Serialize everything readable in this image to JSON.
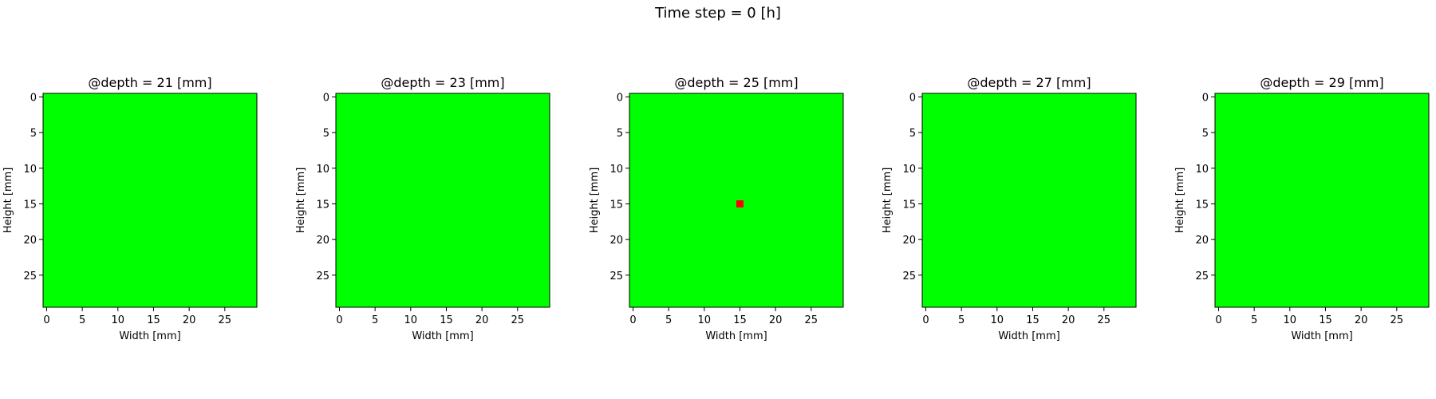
{
  "figure": {
    "suptitle": "Time step = 0 [h]"
  },
  "colors": {
    "background_cell": "#00ff00",
    "highlight_cell": "#ff0000",
    "axis": "#000000"
  },
  "chart_data": [
    {
      "type": "heatmap",
      "title": "@depth = 21 [mm]",
      "xlabel": "Width [mm]",
      "ylabel": "Height [mm]",
      "xlim": [
        -0.5,
        29.5
      ],
      "ylim": [
        29.5,
        -0.5
      ],
      "xticks": [
        0,
        5,
        10,
        15,
        20,
        25
      ],
      "yticks": [
        0,
        5,
        10,
        15,
        20,
        25
      ],
      "grid_size": [
        30,
        30
      ],
      "fill": "#00ff00",
      "cells": []
    },
    {
      "type": "heatmap",
      "title": "@depth = 23 [mm]",
      "xlabel": "Width [mm]",
      "ylabel": "Height [mm]",
      "xlim": [
        -0.5,
        29.5
      ],
      "ylim": [
        29.5,
        -0.5
      ],
      "xticks": [
        0,
        5,
        10,
        15,
        20,
        25
      ],
      "yticks": [
        0,
        5,
        10,
        15,
        20,
        25
      ],
      "grid_size": [
        30,
        30
      ],
      "fill": "#00ff00",
      "cells": []
    },
    {
      "type": "heatmap",
      "title": "@depth = 25 [mm]",
      "xlabel": "Width [mm]",
      "ylabel": "Height [mm]",
      "xlim": [
        -0.5,
        29.5
      ],
      "ylim": [
        29.5,
        -0.5
      ],
      "xticks": [
        0,
        5,
        10,
        15,
        20,
        25
      ],
      "yticks": [
        0,
        5,
        10,
        15,
        20,
        25
      ],
      "grid_size": [
        30,
        30
      ],
      "fill": "#00ff00",
      "cells": [
        {
          "x": 15,
          "y": 15,
          "color": "#ff0000"
        }
      ]
    },
    {
      "type": "heatmap",
      "title": "@depth = 27 [mm]",
      "xlabel": "Width [mm]",
      "ylabel": "Height [mm]",
      "xlim": [
        -0.5,
        29.5
      ],
      "ylim": [
        29.5,
        -0.5
      ],
      "xticks": [
        0,
        5,
        10,
        15,
        20,
        25
      ],
      "yticks": [
        0,
        5,
        10,
        15,
        20,
        25
      ],
      "grid_size": [
        30,
        30
      ],
      "fill": "#00ff00",
      "cells": []
    },
    {
      "type": "heatmap",
      "title": "@depth = 29 [mm]",
      "xlabel": "Width [mm]",
      "ylabel": "Height [mm]",
      "xlim": [
        -0.5,
        29.5
      ],
      "ylim": [
        29.5,
        -0.5
      ],
      "xticks": [
        0,
        5,
        10,
        15,
        20,
        25
      ],
      "yticks": [
        0,
        5,
        10,
        15,
        20,
        25
      ],
      "grid_size": [
        30,
        30
      ],
      "fill": "#00ff00",
      "cells": []
    }
  ]
}
